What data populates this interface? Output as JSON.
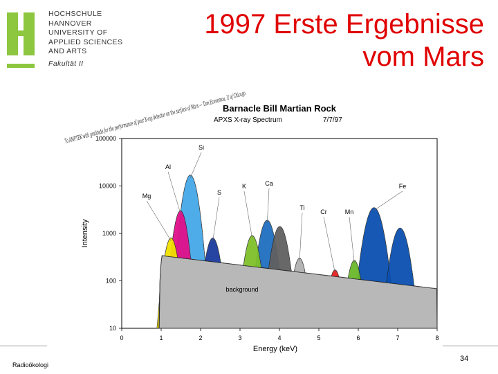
{
  "header": {
    "logo_letter": "H",
    "institution_lines": [
      "HOCHSCHULE",
      "HANNOVER",
      "UNIVERSITY OF",
      "APPLIED SCIENCES",
      "AND ARTS"
    ],
    "faculty": "Fakultät II",
    "colors": {
      "logo": "#8dc63f"
    }
  },
  "slide": {
    "title_line1": "1997 Erste Ergebnisse",
    "title_line2": "vom Mars",
    "title_color": "#e00000"
  },
  "footer": {
    "left_text": "Radioökologi",
    "page_number": "34"
  },
  "chart_data": {
    "type": "area",
    "title": "Barnacle Bill Martian Rock",
    "subtitle": "APXS X-ray Spectrum",
    "date": "7/7/97",
    "xlabel": "Energy (keV)",
    "ylabel": "Intensity",
    "xlim": [
      0,
      8
    ],
    "ylim": [
      10,
      100000
    ],
    "y_scale": "log",
    "x_ticks": [
      "0",
      "1",
      "2",
      "3",
      "4",
      "5",
      "6",
      "7",
      "8"
    ],
    "y_ticks": [
      "100000",
      "10000",
      "1000",
      "100",
      "10"
    ],
    "background_label": "background",
    "handwritten_note": "To AMPTEK with gratitude for the performance of your X-ray detector on the surface of Mars — Tom Economou, U of Chicago",
    "peaks": [
      {
        "name": "Mg",
        "energy": 1.25,
        "peak": 800,
        "width": 0.12,
        "color": "#f0e000"
      },
      {
        "name": "Al",
        "energy": 1.49,
        "peak": 3000,
        "width": 0.12,
        "color": "#e0108a"
      },
      {
        "name": "Si",
        "energy": 1.74,
        "peak": 17000,
        "width": 0.13,
        "color": "#44a8e8"
      },
      {
        "name": "S",
        "energy": 2.31,
        "peak": 800,
        "width": 0.13,
        "color": "#1a3a9c"
      },
      {
        "name": "K",
        "energy": 3.31,
        "peak": 900,
        "width": 0.13,
        "color": "#7ec02a"
      },
      {
        "name": "Ca",
        "energy": 3.69,
        "peak": 1900,
        "width": 0.14,
        "color": "#1f6fc0"
      },
      {
        "name": "Ti",
        "energy": 4.51,
        "peak": 300,
        "width": 0.12,
        "color": "#b0b0b0"
      },
      {
        "name": "Cr",
        "energy": 5.41,
        "peak": 170,
        "width": 0.12,
        "color": "#e62020"
      },
      {
        "name": "Mn",
        "energy": 5.9,
        "peak": 270,
        "width": 0.12,
        "color": "#6ab82a"
      },
      {
        "name": "Fe",
        "energy": 6.4,
        "peak": 3500,
        "width": 0.16,
        "color": "#0a4fb0"
      },
      {
        "name": "Fe",
        "energy": 7.06,
        "peak": 1300,
        "width": 0.15,
        "color": "#0a4fb0"
      }
    ],
    "extra_peak": {
      "energy": 4.01,
      "peak": 1400,
      "width": 0.14,
      "color": "#606060"
    },
    "background_color": "#b8b8b8"
  }
}
